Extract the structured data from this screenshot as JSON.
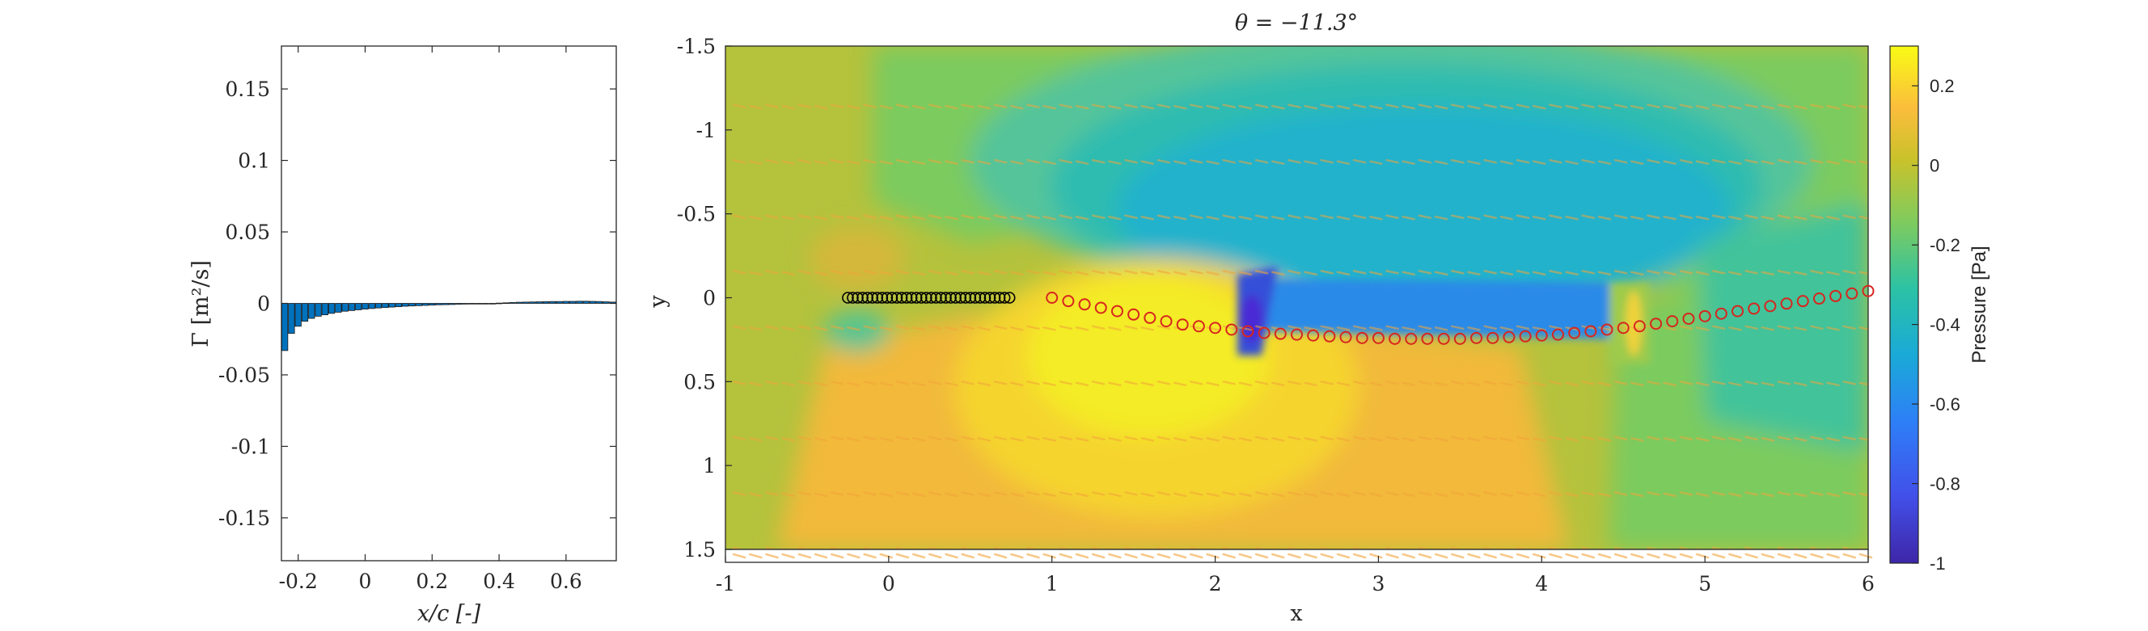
{
  "chart_data": [
    {
      "type": "bar",
      "name": "circulation",
      "xlabel": "x/c [-]",
      "ylabel": "Γ [m²/s]",
      "xlim": [
        -0.25,
        0.75
      ],
      "ylim": [
        -0.18,
        0.18
      ],
      "xticks": [
        "-0.2",
        "0",
        "0.2",
        "0.4",
        "0.6"
      ],
      "xtick_values": [
        -0.2,
        0,
        0.2,
        0.4,
        0.6
      ],
      "yticks": [
        "0.15",
        "0.1",
        "0.05",
        "0",
        "-0.05",
        "-0.1",
        "-0.15"
      ],
      "ytick_values": [
        0.15,
        0.1,
        0.05,
        0,
        -0.05,
        -0.1,
        -0.15
      ],
      "x": [
        -0.24,
        -0.22,
        -0.2,
        -0.18,
        -0.16,
        -0.14,
        -0.12,
        -0.1,
        -0.08,
        -0.06,
        -0.04,
        -0.02,
        0.0,
        0.02,
        0.04,
        0.06,
        0.08,
        0.1,
        0.12,
        0.14,
        0.16,
        0.18,
        0.2,
        0.22,
        0.24,
        0.26,
        0.28,
        0.3,
        0.32,
        0.34,
        0.36,
        0.38,
        0.4,
        0.42,
        0.44,
        0.46,
        0.48,
        0.5,
        0.52,
        0.54,
        0.56,
        0.58,
        0.6,
        0.62,
        0.64,
        0.66,
        0.68,
        0.7,
        0.72,
        0.74
      ],
      "values": [
        -0.033,
        -0.021,
        -0.016,
        -0.0125,
        -0.0105,
        -0.009,
        -0.008,
        -0.007,
        -0.0062,
        -0.0055,
        -0.005,
        -0.0045,
        -0.004,
        -0.0036,
        -0.0032,
        -0.0029,
        -0.0026,
        -0.0023,
        -0.002,
        -0.0018,
        -0.0016,
        -0.0014,
        -0.0012,
        -0.001,
        -0.0009,
        -0.0008,
        -0.0006,
        -0.0005,
        -0.0004,
        -0.0003,
        -0.0002,
        -0.0001,
        0.0002,
        0.0004,
        0.0006,
        0.0008,
        0.0009,
        0.001,
        0.0011,
        0.0012,
        0.0013,
        0.0013,
        0.0014,
        0.0014,
        0.0015,
        0.0015,
        0.0014,
        0.0013,
        0.0011,
        0.0009
      ],
      "bar_color": "#0072bd"
    },
    {
      "type": "heatmap",
      "name": "pressure-field",
      "title": "θ = −11.3°",
      "xlabel": "x",
      "ylabel": "y",
      "xlim": [
        -1,
        6
      ],
      "ylim": [
        -1.5,
        1.55
      ],
      "y_reversed": true,
      "xticks": [
        "-1",
        "0",
        "1",
        "2",
        "3",
        "4",
        "5",
        "6"
      ],
      "xtick_values": [
        -1,
        0,
        1,
        2,
        3,
        4,
        5,
        6
      ],
      "yticks": [
        "-1.5",
        "-1",
        "-0.5",
        "0",
        "0.5",
        "1",
        "1.5"
      ],
      "ytick_values": [
        -1.5,
        -1,
        -0.5,
        0,
        0.5,
        1,
        1.5
      ],
      "colorbar": {
        "label": "Pressure [Pa]",
        "range": [
          -1,
          0.3
        ],
        "ticks": [
          "0.2",
          "0",
          "-0.2",
          "-0.4",
          "-0.6",
          "-0.8",
          "-1"
        ],
        "tick_values": [
          0.2,
          0,
          -0.2,
          -0.4,
          -0.6,
          -0.8,
          -1
        ],
        "colormap": "parula"
      },
      "plate_points": {
        "x": [
          -0.25,
          -0.22,
          -0.19,
          -0.16,
          -0.13,
          -0.1,
          -0.07,
          -0.04,
          -0.01,
          0.02,
          0.05,
          0.08,
          0.11,
          0.14,
          0.17,
          0.2,
          0.23,
          0.26,
          0.29,
          0.32,
          0.35,
          0.38,
          0.41,
          0.44,
          0.47,
          0.5,
          0.53,
          0.56,
          0.59,
          0.62,
          0.65,
          0.68,
          0.71,
          0.74
        ],
        "y": 0,
        "marker_color": "#000000"
      },
      "wake_points": {
        "x": [
          1.0,
          1.1,
          1.2,
          1.3,
          1.4,
          1.5,
          1.6,
          1.7,
          1.8,
          1.9,
          2.0,
          2.1,
          2.2,
          2.3,
          2.4,
          2.5,
          2.6,
          2.7,
          2.8,
          2.9,
          3.0,
          3.1,
          3.2,
          3.3,
          3.4,
          3.5,
          3.6,
          3.7,
          3.8,
          3.9,
          4.0,
          4.1,
          4.2,
          4.3,
          4.4,
          4.5,
          4.6,
          4.7,
          4.8,
          4.9,
          5.0,
          5.1,
          5.2,
          5.3,
          5.4,
          5.5,
          5.6,
          5.7,
          5.8,
          5.9,
          6.0
        ],
        "y": [
          0.0,
          0.02,
          0.04,
          0.06,
          0.08,
          0.1,
          0.12,
          0.14,
          0.16,
          0.17,
          0.18,
          0.19,
          0.2,
          0.21,
          0.215,
          0.22,
          0.225,
          0.23,
          0.235,
          0.24,
          0.24,
          0.245,
          0.245,
          0.245,
          0.245,
          0.245,
          0.24,
          0.24,
          0.235,
          0.23,
          0.225,
          0.22,
          0.21,
          0.2,
          0.19,
          0.18,
          0.17,
          0.155,
          0.14,
          0.125,
          0.11,
          0.095,
          0.08,
          0.065,
          0.05,
          0.035,
          0.02,
          0.005,
          -0.01,
          -0.025,
          -0.04
        ],
        "marker_color": "#d7261e"
      },
      "field_colors": {
        "background": "#b4c23c",
        "low": "#35b8c8",
        "very_low": "#2a7ae0",
        "min": "#4a2ad4",
        "high": "#f5d42e",
        "peak": "#f4ec28",
        "orange": "#f2b93a",
        "green": "#7ccb5e",
        "quiver": "#f2a53a"
      }
    }
  ]
}
